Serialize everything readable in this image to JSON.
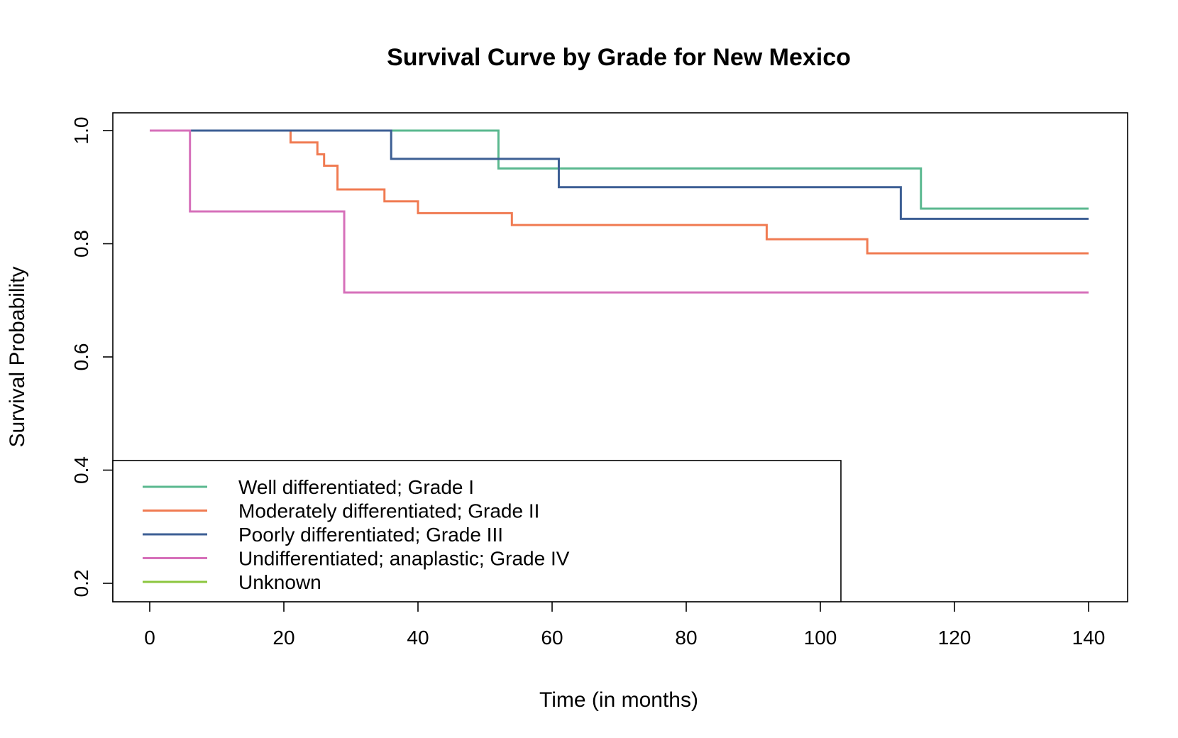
{
  "chart_data": {
    "type": "line",
    "step": true,
    "title": "Survival Curve by Grade for New Mexico",
    "xlabel": "Time (in months)",
    "ylabel": "Survival Probability",
    "xlim": [
      0,
      140
    ],
    "ylim": [
      0.2,
      1.0
    ],
    "x_ticks": [
      0,
      20,
      40,
      60,
      80,
      100,
      120,
      140
    ],
    "y_ticks": [
      0.2,
      0.4,
      0.6,
      0.8,
      1.0
    ],
    "x_tick_labels": [
      "0",
      "20",
      "40",
      "60",
      "80",
      "100",
      "120",
      "140"
    ],
    "y_tick_labels": [
      "0.2",
      "0.4",
      "0.6",
      "0.8",
      "1.0"
    ],
    "grid": false,
    "legend_position": "bottom-left",
    "series": [
      {
        "name": "Well differentiated; Grade I",
        "color": "#5ab88f",
        "x": [
          0,
          52,
          115,
          140
        ],
        "y": [
          1.0,
          0.933,
          0.862,
          0.862
        ]
      },
      {
        "name": "Moderately differentiated; Grade II",
        "color": "#f07b52",
        "x": [
          0,
          21,
          25,
          26,
          28,
          35,
          40,
          54,
          92,
          107,
          140
        ],
        "y": [
          1.0,
          0.979,
          0.958,
          0.938,
          0.896,
          0.875,
          0.854,
          0.833,
          0.808,
          0.783,
          0.783
        ]
      },
      {
        "name": "Poorly differentiated; Grade III",
        "color": "#3d5f94",
        "x": [
          0,
          36,
          61,
          112,
          140
        ],
        "y": [
          1.0,
          0.95,
          0.9,
          0.844,
          0.844
        ]
      },
      {
        "name": "Undifferentiated; anaplastic; Grade IV",
        "color": "#d670ba",
        "x": [
          0,
          6,
          29,
          140
        ],
        "y": [
          1.0,
          0.857,
          0.714,
          0.714
        ]
      },
      {
        "name": "Unknown",
        "color": "#8cc63f",
        "x": [],
        "y": []
      }
    ]
  }
}
